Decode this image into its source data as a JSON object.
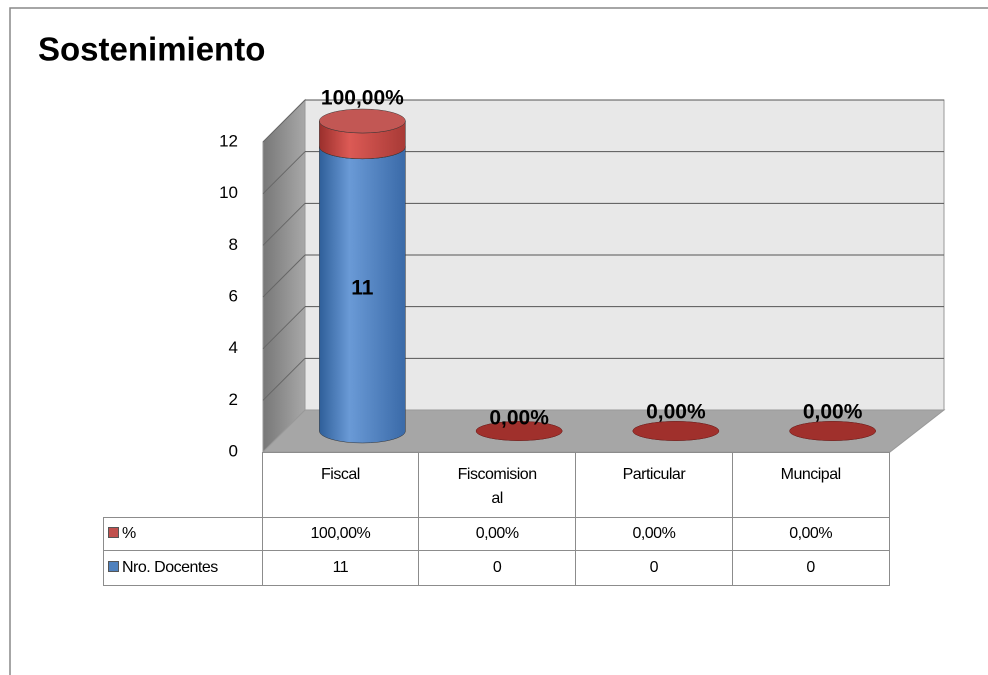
{
  "chart_data": {
    "type": "bar",
    "stacked": true,
    "title": "Sostenimiento",
    "categories": [
      "Fiscal",
      "Fiscomisional",
      "Particular",
      "Muncipal"
    ],
    "series": [
      {
        "name": "Nro. Docentes",
        "color": "#4f81bd",
        "values": [
          11,
          0,
          0,
          0
        ]
      },
      {
        "name": "%",
        "color": "#c0504d",
        "values": [
          1,
          0,
          0,
          0
        ],
        "value_labels": [
          "100,00%",
          "0,00%",
          "0,00%",
          "0,00%"
        ]
      }
    ],
    "ylim": [
      0,
      12
    ],
    "yticks": [
      0,
      2,
      4,
      6,
      8,
      10,
      12
    ],
    "grid": true
  }
}
